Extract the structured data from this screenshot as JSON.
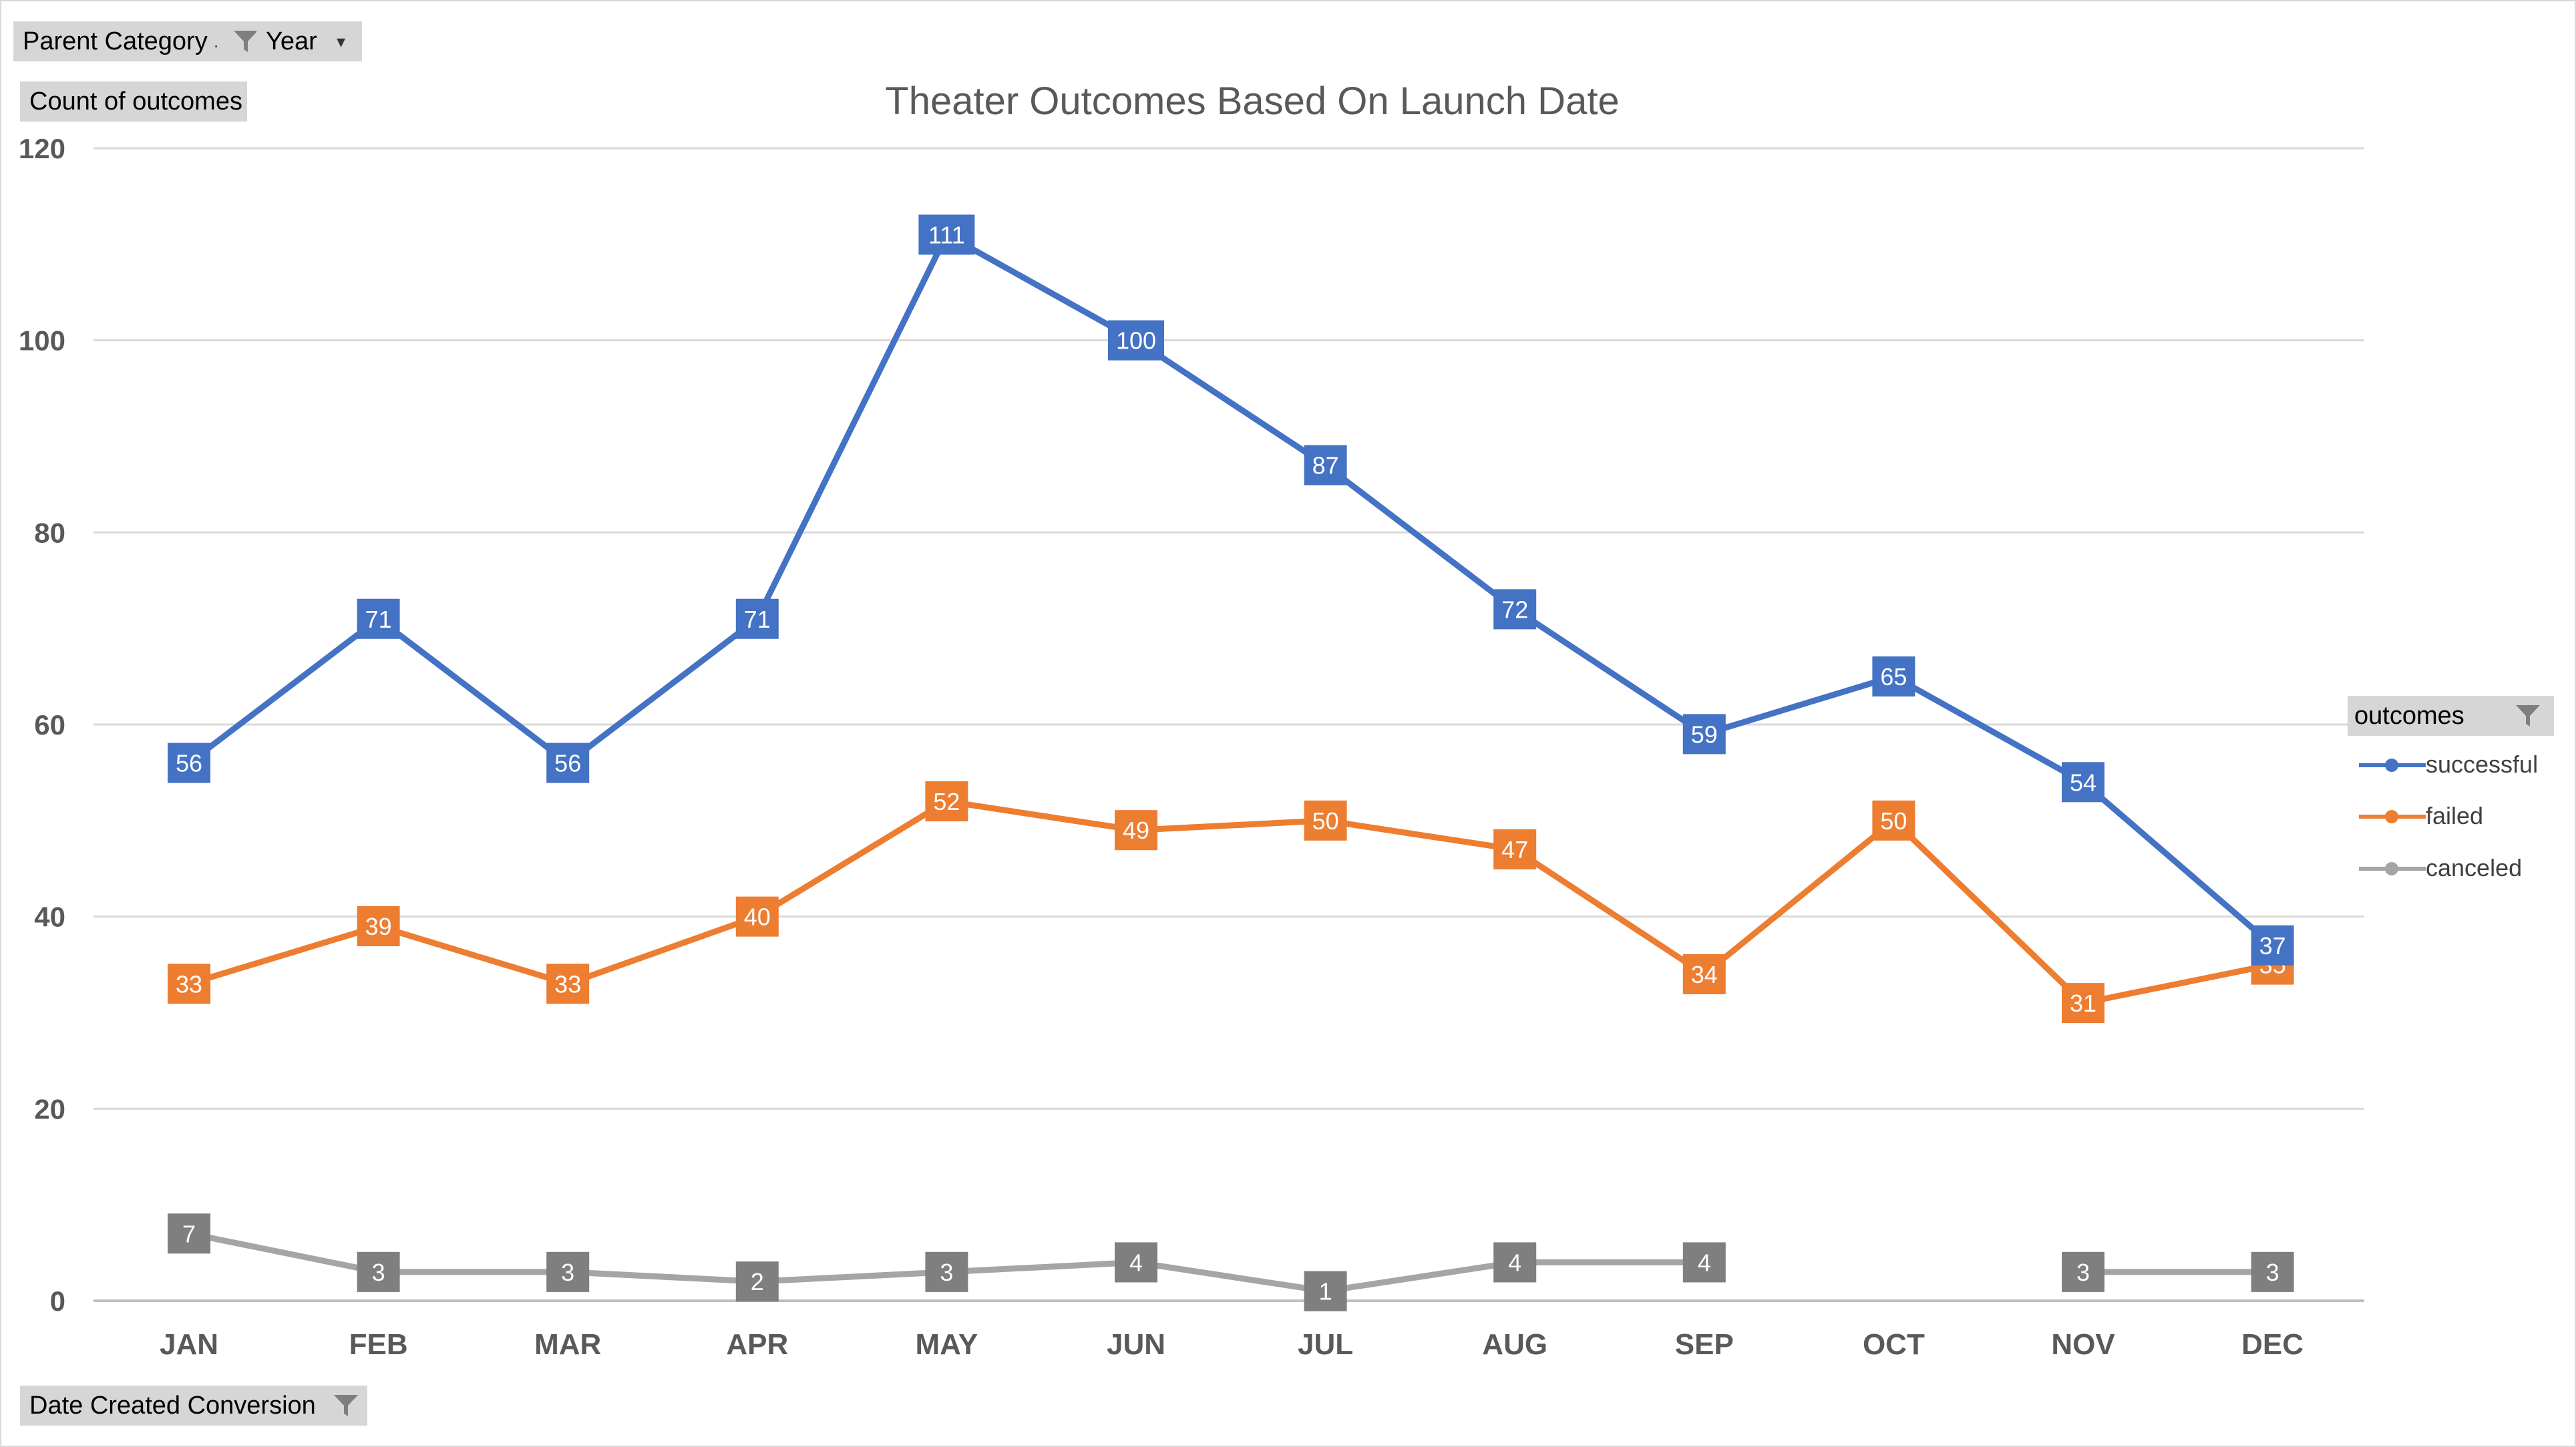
{
  "filters": {
    "parent_category_label": "Parent Category",
    "year_label": "Year",
    "values_label": "Count of outcomes",
    "axis_field_label": "Date Created Conversion",
    "legend_field_label": "outcomes"
  },
  "colors": {
    "successful": "#4472c4",
    "failed": "#ed7d31",
    "canceled": "#a5a5a5",
    "canceled_label_bg": "#7f7f7f",
    "gridline": "#d9d9d9",
    "axis_text": "#595959",
    "field_button_bg": "#d6d6d6"
  },
  "chart_data": {
    "type": "line",
    "title": "Theater Outcomes Based On Launch Date",
    "xlabel": "",
    "ylabel": "",
    "categories": [
      "JAN",
      "FEB",
      "MAR",
      "APR",
      "MAY",
      "JUN",
      "JUL",
      "AUG",
      "SEP",
      "OCT",
      "NOV",
      "DEC"
    ],
    "ylim": [
      0,
      120
    ],
    "yticks": [
      0,
      20,
      40,
      60,
      80,
      100,
      120
    ],
    "grid": true,
    "legend_position": "right",
    "series": [
      {
        "name": "successful",
        "values": [
          56,
          71,
          56,
          71,
          111,
          100,
          87,
          72,
          59,
          65,
          54,
          37
        ]
      },
      {
        "name": "failed",
        "values": [
          33,
          39,
          33,
          40,
          52,
          49,
          50,
          47,
          34,
          50,
          31,
          35
        ]
      },
      {
        "name": "canceled",
        "values": [
          7,
          3,
          3,
          2,
          3,
          4,
          1,
          4,
          4,
          null,
          3,
          3
        ]
      }
    ]
  }
}
